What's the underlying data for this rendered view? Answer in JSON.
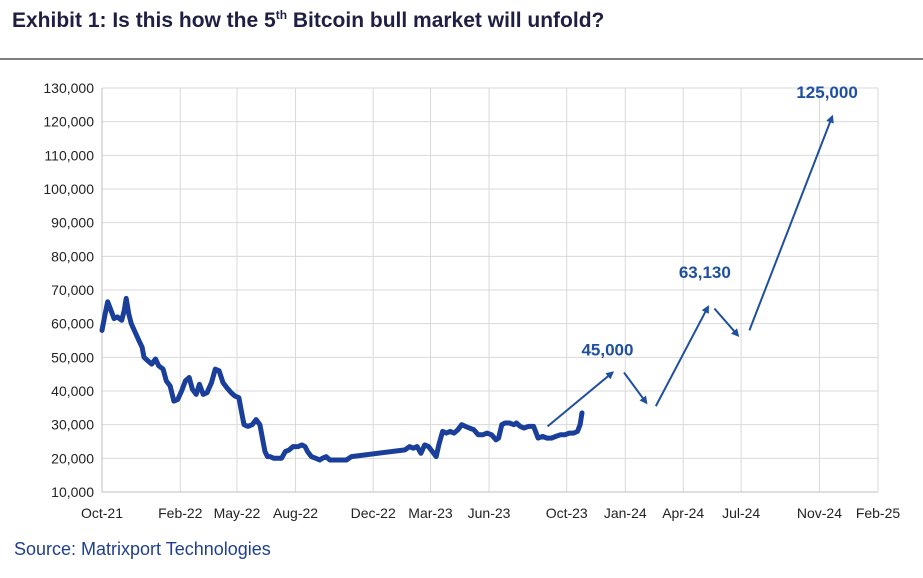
{
  "title_main": "Exhibit 1: Is this how the 5",
  "title_sup": "th",
  "title_rest": " Bitcoin bull market will unfold?",
  "source": "Source: Matrixport Technologies",
  "colors": {
    "series": "#1a3f9a",
    "arrow": "#1e4fa0",
    "grid": "#d9d9d9",
    "annotation": "#1e4fa0"
  },
  "chart_data": {
    "type": "line",
    "ylim": [
      10000,
      130000
    ],
    "xlim": [
      "2021-10-01",
      "2025-02-01"
    ],
    "grid": "on",
    "y_ticks": [
      "10,000",
      "20,000",
      "30,000",
      "40,000",
      "50,000",
      "60,000",
      "70,000",
      "80,000",
      "90,000",
      "100,000",
      "110,000",
      "120,000",
      "130,000"
    ],
    "y_tick_values": [
      10000,
      20000,
      30000,
      40000,
      50000,
      60000,
      70000,
      80000,
      90000,
      100000,
      110000,
      120000,
      130000
    ],
    "x_ticks": [
      "Oct-21",
      "Feb-22",
      "May-22",
      "Aug-22",
      "Dec-22",
      "Mar-23",
      "Jun-23",
      "Oct-23",
      "Jan-24",
      "Apr-24",
      "Jul-24",
      "Nov-24",
      "Feb-25"
    ],
    "x_tick_dates": [
      "2021-10-01",
      "2022-02-01",
      "2022-05-01",
      "2022-08-01",
      "2022-12-01",
      "2023-03-01",
      "2023-06-01",
      "2023-10-01",
      "2024-01-01",
      "2024-04-01",
      "2024-07-01",
      "2024-11-01",
      "2025-02-01"
    ],
    "series": [
      {
        "x": [
          "2021-10-01",
          "2021-10-06",
          "2021-10-10",
          "2021-10-15",
          "2021-10-20",
          "2021-10-25",
          "2021-11-01",
          "2021-11-05",
          "2021-11-08",
          "2021-11-12",
          "2021-11-16",
          "2021-11-22",
          "2021-11-28",
          "2021-12-03",
          "2021-12-06",
          "2021-12-12",
          "2021-12-18",
          "2021-12-24",
          "2021-12-29",
          "2022-01-05",
          "2022-01-10",
          "2022-01-16",
          "2022-01-22",
          "2022-01-28",
          "2022-02-03",
          "2022-02-09",
          "2022-02-15",
          "2022-02-20",
          "2022-02-26",
          "2022-03-03",
          "2022-03-09",
          "2022-03-15",
          "2022-03-22",
          "2022-03-28",
          "2022-04-03",
          "2022-04-09",
          "2022-04-15",
          "2022-04-22",
          "2022-04-28",
          "2022-05-04",
          "2022-05-08",
          "2022-05-12",
          "2022-05-18",
          "2022-05-25",
          "2022-05-31",
          "2022-06-06",
          "2022-06-10",
          "2022-06-14",
          "2022-06-18",
          "2022-06-22",
          "2022-06-28",
          "2022-07-04",
          "2022-07-10",
          "2022-07-16",
          "2022-07-22",
          "2022-07-28",
          "2022-08-05",
          "2022-08-11",
          "2022-08-16",
          "2022-08-20",
          "2022-08-26",
          "2022-09-02",
          "2022-09-08",
          "2022-09-12",
          "2022-09-18",
          "2022-09-24",
          "2022-10-01",
          "2022-10-10",
          "2022-10-20",
          "2022-10-28",
          "2023-01-20",
          "2023-01-27",
          "2023-02-02",
          "2023-02-08",
          "2023-02-14",
          "2023-02-20",
          "2023-02-26",
          "2023-03-04",
          "2023-03-10",
          "2023-03-14",
          "2023-03-20",
          "2023-03-26",
          "2023-04-01",
          "2023-04-07",
          "2023-04-13",
          "2023-04-19",
          "2023-04-25",
          "2023-05-01",
          "2023-05-08",
          "2023-05-15",
          "2023-05-22",
          "2023-05-29",
          "2023-06-05",
          "2023-06-12",
          "2023-06-16",
          "2023-06-21",
          "2023-06-26",
          "2023-07-03",
          "2023-07-10",
          "2023-07-14",
          "2023-07-20",
          "2023-07-26",
          "2023-08-02",
          "2023-08-10",
          "2023-08-17",
          "2023-08-24",
          "2023-08-31",
          "2023-09-07",
          "2023-09-14",
          "2023-09-21",
          "2023-09-28",
          "2023-10-05",
          "2023-10-12",
          "2023-10-18",
          "2023-10-22",
          "2023-10-25"
        ],
        "values": [
          58000,
          63000,
          66500,
          64000,
          61500,
          62000,
          61000,
          64000,
          67500,
          63000,
          60000,
          57500,
          55000,
          53000,
          50000,
          49000,
          48000,
          49500,
          47500,
          46500,
          43000,
          41500,
          37000,
          37500,
          40000,
          43000,
          44000,
          40500,
          39000,
          42000,
          39000,
          39500,
          42500,
          46500,
          46000,
          42500,
          41000,
          39500,
          38500,
          38000,
          34000,
          30000,
          29500,
          30000,
          31500,
          30000,
          26000,
          22000,
          20500,
          20500,
          20000,
          20000,
          20000,
          22000,
          22500,
          23500,
          23500,
          24000,
          23500,
          22000,
          20500,
          20000,
          19500,
          20000,
          20500,
          19500,
          19500,
          19500,
          19500,
          20500,
          22500,
          23500,
          23000,
          23500,
          21500,
          24000,
          23500,
          22000,
          20500,
          24000,
          28000,
          27500,
          28000,
          27500,
          28500,
          30000,
          29500,
          29000,
          28500,
          27000,
          27000,
          27500,
          27000,
          25500,
          26000,
          30000,
          30500,
          30500,
          30000,
          30500,
          29500,
          29000,
          29500,
          29500,
          26000,
          26500,
          26000,
          26000,
          26500,
          27000,
          27000,
          27500,
          27500,
          28000,
          30000,
          33500
        ],
        "style": "solid"
      },
      {
        "name": "projection",
        "style": "arrows",
        "segments": [
          {
            "from": [
              "2023-09-01",
              29500
            ],
            "to": [
              "2023-12-12",
              45500
            ]
          },
          {
            "from": [
              "2023-12-30",
              45500
            ],
            "to": [
              "2024-02-03",
              36500
            ]
          },
          {
            "from": [
              "2024-02-18",
              35500
            ],
            "to": [
              "2024-05-10",
              65000
            ]
          },
          {
            "from": [
              "2024-05-20",
              64500
            ],
            "to": [
              "2024-06-26",
              56500
            ]
          },
          {
            "from": [
              "2024-07-14",
              58000
            ],
            "to": [
              "2024-11-21",
              121500
            ]
          }
        ]
      }
    ],
    "annotations": [
      {
        "label": "45,000",
        "x": "2023-12-04",
        "y": 50500
      },
      {
        "label": "63,130",
        "x": "2024-05-05",
        "y": 73500
      },
      {
        "label": "125,000",
        "x": "2024-11-13",
        "y": 127000
      }
    ]
  }
}
